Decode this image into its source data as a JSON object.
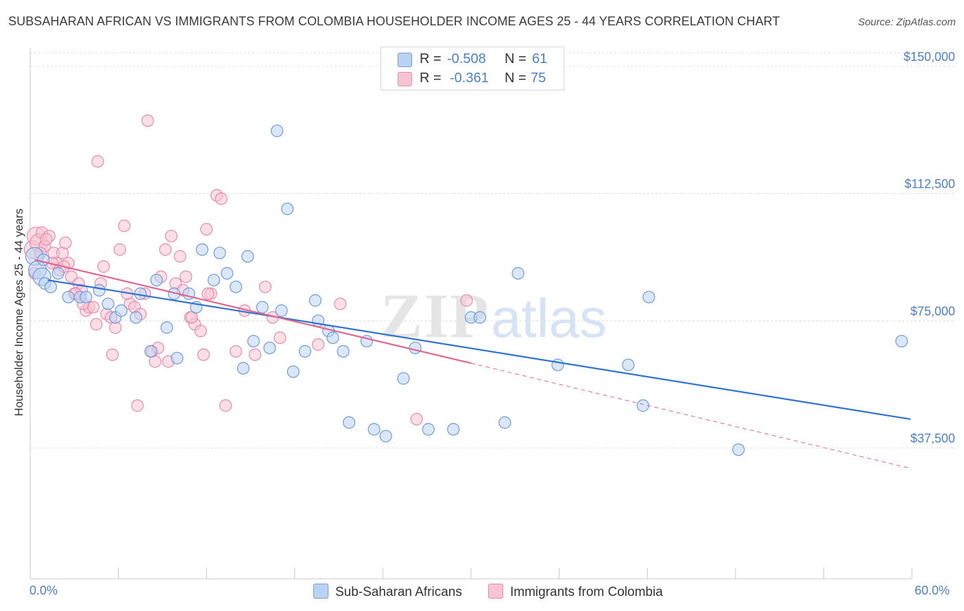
{
  "title": "SUBSAHARAN AFRICAN VS IMMIGRANTS FROM COLOMBIA HOUSEHOLDER INCOME AGES 25 - 44 YEARS CORRELATION CHART",
  "source": "Source: ZipAtlas.com",
  "legend": {
    "r_label": "R =",
    "n_label": "N =",
    "series1": {
      "r": "-0.508",
      "n": "61"
    },
    "series2": {
      "r": "-0.361",
      "n": "75"
    }
  },
  "colors": {
    "blue_fill": "#b9d3f3",
    "blue_stroke": "#6f9bd8",
    "blue_line": "#2f72d0",
    "pink_fill": "#f7c4d4",
    "pink_stroke": "#e98aab",
    "pink_line": "#e0648f",
    "axis_text": "#4a7fd0"
  },
  "chart_data": {
    "type": "scatter",
    "title": "SUBSAHARAN AFRICAN VS IMMIGRANTS FROM COLOMBIA HOUSEHOLDER INCOME AGES 25 - 44 YEARS CORRELATION CHART",
    "xlabel": "",
    "ylabel": "Householder Income Ages 25 - 44 years",
    "xlim": [
      0,
      60
    ],
    "ylim": [
      0,
      155000
    ],
    "x_tick_labels": [
      "0.0%",
      "60.0%"
    ],
    "y_ticks": [
      37500,
      75000,
      112500,
      150000
    ],
    "y_tick_labels": [
      "$37,500",
      "$75,000",
      "$112,500",
      "$150,000"
    ],
    "watermark": {
      "part1": "ZIP",
      "part2": "atlas"
    },
    "series": [
      {
        "name": "Sub-Saharan Africans",
        "color": "#6f9bd8",
        "r": -0.508,
        "n": 61,
        "trend": {
          "x0": 1.2,
          "y0": 87000,
          "x1": 59.9,
          "y1": 46000
        },
        "points": [
          [
            0.3,
            94000
          ],
          [
            0.5,
            90000
          ],
          [
            0.8,
            88000
          ],
          [
            1.0,
            86000
          ],
          [
            1.4,
            85000
          ],
          [
            1.9,
            89000
          ],
          [
            2.6,
            82000
          ],
          [
            3.4,
            82000
          ],
          [
            3.8,
            82000
          ],
          [
            4.7,
            84000
          ],
          [
            5.3,
            80000
          ],
          [
            5.8,
            76000
          ],
          [
            6.2,
            78000
          ],
          [
            7.2,
            76000
          ],
          [
            7.5,
            83000
          ],
          [
            8.2,
            66000
          ],
          [
            8.6,
            87000
          ],
          [
            9.3,
            73000
          ],
          [
            9.8,
            83000
          ],
          [
            10.0,
            64000
          ],
          [
            10.8,
            83000
          ],
          [
            11.3,
            79000
          ],
          [
            11.7,
            96000
          ],
          [
            12.5,
            87000
          ],
          [
            12.9,
            95000
          ],
          [
            13.4,
            89000
          ],
          [
            14.0,
            85000
          ],
          [
            14.5,
            61000
          ],
          [
            14.8,
            94000
          ],
          [
            15.2,
            69000
          ],
          [
            15.8,
            79000
          ],
          [
            16.3,
            67000
          ],
          [
            16.8,
            131000
          ],
          [
            17.1,
            78000
          ],
          [
            17.5,
            108000
          ],
          [
            17.9,
            60000
          ],
          [
            18.7,
            66000
          ],
          [
            19.4,
            81000
          ],
          [
            19.6,
            75000
          ],
          [
            20.3,
            72000
          ],
          [
            20.6,
            70000
          ],
          [
            21.3,
            66000
          ],
          [
            21.7,
            45000
          ],
          [
            22.9,
            69000
          ],
          [
            23.4,
            43000
          ],
          [
            24.2,
            41000
          ],
          [
            25.4,
            58000
          ],
          [
            26.2,
            67000
          ],
          [
            27.1,
            43000
          ],
          [
            28.8,
            43000
          ],
          [
            30.0,
            76000
          ],
          [
            30.6,
            76000
          ],
          [
            32.3,
            45000
          ],
          [
            33.2,
            89000
          ],
          [
            35.9,
            62000
          ],
          [
            40.7,
            62000
          ],
          [
            41.7,
            50000
          ],
          [
            42.1,
            82000
          ],
          [
            48.2,
            37000
          ],
          [
            59.3,
            69000
          ],
          [
            0.9,
            93000
          ]
        ]
      },
      {
        "name": "Immigrants from Colombia",
        "color": "#e98aab",
        "r": -0.361,
        "n": 75,
        "trend": {
          "x0": 0.3,
          "y0": 93000,
          "x1": 30.0,
          "y1": 62500
        },
        "trend_dashed": {
          "x0": 30.0,
          "y0": 62500,
          "x1": 59.9,
          "y1": 31500
        },
        "points": [
          [
            0.2,
            96000
          ],
          [
            0.4,
            100000
          ],
          [
            0.6,
            98000
          ],
          [
            0.8,
            101000
          ],
          [
            1.0,
            97000
          ],
          [
            1.3,
            100000
          ],
          [
            1.6,
            95000
          ],
          [
            1.8,
            92000
          ],
          [
            2.2,
            95000
          ],
          [
            2.4,
            98000
          ],
          [
            2.6,
            92000
          ],
          [
            2.8,
            88000
          ],
          [
            3.0,
            83000
          ],
          [
            3.3,
            86000
          ],
          [
            3.5,
            84000
          ],
          [
            3.8,
            78000
          ],
          [
            4.0,
            79000
          ],
          [
            4.3,
            79000
          ],
          [
            4.5,
            74000
          ],
          [
            4.6,
            122000
          ],
          [
            4.8,
            86000
          ],
          [
            5.0,
            91000
          ],
          [
            5.2,
            77000
          ],
          [
            5.5,
            76000
          ],
          [
            5.8,
            73000
          ],
          [
            6.1,
            96000
          ],
          [
            6.4,
            103000
          ],
          [
            6.8,
            80000
          ],
          [
            7.1,
            79000
          ],
          [
            7.5,
            77000
          ],
          [
            7.8,
            83000
          ],
          [
            8.0,
            134000
          ],
          [
            8.3,
            66000
          ],
          [
            8.5,
            63000
          ],
          [
            8.9,
            88000
          ],
          [
            9.2,
            96000
          ],
          [
            9.6,
            100000
          ],
          [
            9.9,
            86000
          ],
          [
            10.2,
            94000
          ],
          [
            10.6,
            88000
          ],
          [
            10.9,
            76000
          ],
          [
            11.2,
            74000
          ],
          [
            11.6,
            72000
          ],
          [
            12.0,
            102000
          ],
          [
            12.3,
            83000
          ],
          [
            12.7,
            112000
          ],
          [
            13.0,
            111000
          ],
          [
            13.3,
            50000
          ],
          [
            14.0,
            66000
          ],
          [
            14.6,
            78000
          ],
          [
            15.3,
            65000
          ],
          [
            16.0,
            85000
          ],
          [
            16.5,
            76000
          ],
          [
            17.0,
            70000
          ],
          [
            19.6,
            68000
          ],
          [
            21.1,
            80000
          ],
          [
            26.3,
            46000
          ],
          [
            29.7,
            81000
          ],
          [
            0.7,
            95000
          ],
          [
            1.5,
            92000
          ],
          [
            2.0,
            90000
          ],
          [
            3.6,
            80000
          ],
          [
            5.6,
            65000
          ],
          [
            6.6,
            83000
          ],
          [
            7.3,
            50000
          ],
          [
            8.7,
            67000
          ],
          [
            9.4,
            63000
          ],
          [
            10.4,
            84000
          ],
          [
            11.0,
            76000
          ],
          [
            11.8,
            65000
          ],
          [
            12.1,
            83000
          ],
          [
            0.3,
            89000
          ],
          [
            1.1,
            99000
          ],
          [
            2.3,
            91000
          ],
          [
            3.1,
            83000
          ]
        ]
      }
    ]
  }
}
